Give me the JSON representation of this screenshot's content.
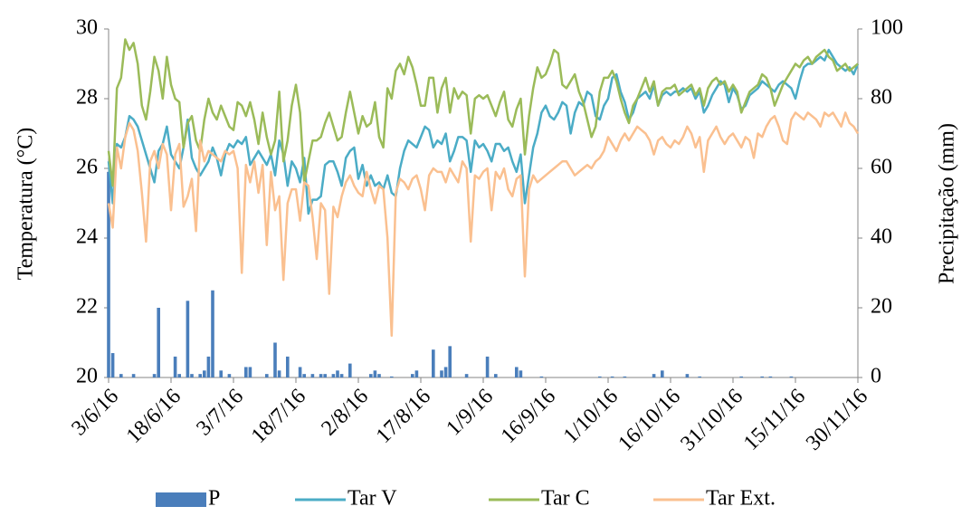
{
  "chart_data": {
    "type": "bar-line",
    "y_label": "Temperatura (°C)",
    "y2_label": "Precipitação (mm)",
    "categories": [
      "3/6/16",
      null,
      null,
      null,
      null,
      null,
      null,
      null,
      null,
      null,
      null,
      null,
      null,
      null,
      null,
      "18/6/16",
      null,
      null,
      null,
      null,
      null,
      null,
      null,
      null,
      null,
      null,
      null,
      null,
      null,
      null,
      "3/7/16",
      null,
      null,
      null,
      null,
      null,
      null,
      null,
      null,
      null,
      null,
      null,
      null,
      null,
      null,
      "18/7/16",
      null,
      null,
      null,
      null,
      null,
      null,
      null,
      null,
      null,
      null,
      null,
      null,
      null,
      null,
      "2/8/16",
      null,
      null,
      null,
      null,
      null,
      null,
      null,
      null,
      null,
      null,
      null,
      null,
      null,
      null,
      "17/8/16",
      null,
      null,
      null,
      null,
      null,
      null,
      null,
      null,
      null,
      null,
      null,
      null,
      null,
      null,
      "1/9/16",
      null,
      null,
      null,
      null,
      null,
      null,
      null,
      null,
      null,
      null,
      null,
      null,
      null,
      null,
      "16/9/16",
      null,
      null,
      null,
      null,
      null,
      null,
      null,
      null,
      null,
      null,
      null,
      null,
      null,
      null,
      "1/10/16",
      null,
      null,
      null,
      null,
      null,
      null,
      null,
      null,
      null,
      null,
      null,
      null,
      null,
      null,
      "16/10/16",
      null,
      null,
      null,
      null,
      null,
      null,
      null,
      null,
      null,
      null,
      null,
      null,
      null,
      null,
      "31/10/16",
      null,
      null,
      null,
      null,
      null,
      null,
      null,
      null,
      null,
      null,
      null,
      null,
      null,
      null,
      "15/11/16",
      null,
      null,
      null,
      null,
      null,
      null,
      null,
      null,
      null,
      null,
      null,
      null,
      null,
      null,
      "30/11/16"
    ],
    "series": [
      {
        "name": "P",
        "type": "bar",
        "axis": "y2",
        "color": "#4a7ebb",
        "values": [
          59,
          7,
          0,
          1,
          0,
          0,
          1,
          0,
          0,
          0,
          0,
          1,
          20,
          0,
          0,
          0,
          6,
          1,
          0,
          22,
          1,
          0,
          1,
          2,
          6,
          25,
          0,
          2,
          0,
          1,
          0,
          0,
          0,
          3,
          3,
          0,
          0,
          0,
          1,
          0,
          10,
          2,
          0,
          6,
          0,
          0,
          3,
          1,
          0,
          1,
          0,
          1,
          1,
          0,
          1,
          2,
          1,
          0,
          4,
          0,
          0,
          0,
          0,
          1,
          2,
          1,
          0,
          0,
          0.3,
          0,
          0,
          0,
          0,
          1,
          2,
          0,
          0,
          0,
          8,
          0,
          2,
          3,
          9,
          0,
          0,
          0,
          1,
          0,
          0,
          0,
          0,
          6,
          0,
          1,
          0,
          0,
          0,
          0,
          3,
          2,
          0,
          0,
          0,
          0,
          0.3,
          0,
          0,
          0,
          0,
          0,
          0,
          0,
          0,
          0,
          0,
          0,
          0,
          0,
          0.3,
          0,
          0,
          0.3,
          0,
          0,
          0.3,
          0,
          0,
          0,
          0,
          0,
          0,
          1,
          0,
          2,
          0,
          0,
          0,
          0,
          0,
          1,
          0,
          0,
          0.3,
          0,
          0,
          0,
          0,
          0,
          0,
          0,
          0,
          0,
          0.3,
          0,
          0,
          0,
          0,
          0.3,
          0,
          0.3,
          0,
          0,
          0,
          0,
          0.3,
          0,
          0,
          0,
          0,
          0,
          0,
          0,
          0,
          0,
          0,
          0,
          0,
          0,
          0,
          0,
          0
        ]
      },
      {
        "name": "Tar V",
        "type": "line",
        "color": "#4bacc6",
        "values": [
          26.2,
          25.0,
          26.7,
          26.6,
          26.9,
          27.5,
          27.4,
          27.2,
          26.8,
          26.4,
          26.0,
          25.6,
          26.5,
          26.7,
          27.2,
          26.4,
          26.2,
          26.0,
          26.6,
          27.4,
          26.3,
          26.0,
          25.8,
          26.0,
          26.2,
          26.6,
          26.3,
          25.8,
          26.4,
          26.7,
          26.6,
          26.8,
          26.7,
          26.9,
          26.1,
          26.3,
          26.5,
          26.3,
          26.1,
          26.4,
          25.8,
          26.8,
          26.4,
          25.5,
          26.2,
          26.0,
          25.6,
          26.3,
          24.7,
          25.1,
          25.1,
          25.2,
          26.1,
          26.2,
          26.2,
          25.9,
          25.5,
          26.3,
          26.5,
          26.6,
          25.7,
          26.1,
          25.5,
          25.8,
          25.5,
          25.6,
          25.4,
          25.8,
          25.3,
          25.2,
          26.0,
          26.5,
          26.8,
          26.7,
          26.6,
          26.9,
          27.2,
          27.1,
          26.6,
          26.8,
          26.7,
          27.0,
          26.2,
          26.5,
          26.9,
          26.9,
          26.8,
          25.9,
          26.8,
          26.6,
          26.7,
          26.5,
          26.2,
          26.7,
          26.7,
          26.5,
          26.6,
          26.2,
          25.9,
          26.4,
          25.0,
          25.8,
          26.6,
          27.0,
          27.6,
          27.8,
          27.5,
          27.4,
          27.6,
          27.9,
          27.8,
          27.0,
          27.6,
          27.9,
          27.8,
          28.2,
          28.1,
          27.5,
          27.4,
          27.8,
          28.0,
          28.6,
          28.7,
          28.2,
          27.9,
          27.4,
          27.6,
          28.0,
          28.1,
          28.2,
          28.0,
          28.4,
          27.8,
          28.1,
          28.2,
          28.1,
          28.2,
          28.2,
          28.3,
          28.2,
          28.3,
          28.0,
          28.2,
          27.6,
          27.8,
          28.1,
          28.3,
          28.5,
          28.4,
          27.9,
          28.3,
          28.1,
          27.7,
          27.8,
          28.1,
          28.2,
          28.3,
          28.5,
          28.4,
          28.3,
          28.2,
          28.4,
          28.5,
          28.4,
          28.3,
          28.0,
          28.5,
          28.9,
          29.0,
          29.0,
          29.1,
          29.2,
          29.1,
          29.4,
          29.2,
          29.0,
          28.9,
          28.8,
          28.9,
          28.7,
          29.0
        ]
      },
      {
        "name": "Tar C",
        "type": "line",
        "color": "#9bbb59",
        "values": [
          26.5,
          25.5,
          28.3,
          28.6,
          29.7,
          29.4,
          29.6,
          29.0,
          27.8,
          27.4,
          28.2,
          29.2,
          28.8,
          28.0,
          29.2,
          28.4,
          28.0,
          27.9,
          26.6,
          27.3,
          27.5,
          26.8,
          26.5,
          27.4,
          28.0,
          27.6,
          27.4,
          27.8,
          27.5,
          27.2,
          27.1,
          27.9,
          27.8,
          27.5,
          27.9,
          27.4,
          26.7,
          27.6,
          26.9,
          26.4,
          26.8,
          28.2,
          26.2,
          26.8,
          27.8,
          28.4,
          27.6,
          25.6,
          26.2,
          26.8,
          26.8,
          26.9,
          27.3,
          27.6,
          27.2,
          26.8,
          26.9,
          27.6,
          28.2,
          27.6,
          27.0,
          27.5,
          27.2,
          27.3,
          27.9,
          26.9,
          26.6,
          28.3,
          28.0,
          28.8,
          29.0,
          28.7,
          29.2,
          28.9,
          28.4,
          27.8,
          27.8,
          28.6,
          28.6,
          27.6,
          28.3,
          28.6,
          27.6,
          28.3,
          28.0,
          28.2,
          28.1,
          27.0,
          28.0,
          28.1,
          28.0,
          28.1,
          27.8,
          27.5,
          27.9,
          28.2,
          27.4,
          27.2,
          27.7,
          28.0,
          26.4,
          27.5,
          28.3,
          28.9,
          28.6,
          28.7,
          29.0,
          29.4,
          29.3,
          28.4,
          28.3,
          28.5,
          28.7,
          28.2,
          27.9,
          27.4,
          26.9,
          27.2,
          28.2,
          28.6,
          28.6,
          28.8,
          28.5,
          28.0,
          27.6,
          27.3,
          27.8,
          28.0,
          28.3,
          28.6,
          28.2,
          28.5,
          27.8,
          28.2,
          28.3,
          28.3,
          28.4,
          28.1,
          28.2,
          28.3,
          28.4,
          28.1,
          28.3,
          27.8,
          28.3,
          28.5,
          28.6,
          28.4,
          28.5,
          28.2,
          28.4,
          28.2,
          27.6,
          27.9,
          28.2,
          28.3,
          28.4,
          28.7,
          28.6,
          28.3,
          27.8,
          28.1,
          28.4,
          28.6,
          28.8,
          29.0,
          28.9,
          29.1,
          29.2,
          29.0,
          29.2,
          29.3,
          29.4,
          29.2,
          29.1,
          28.8,
          28.9,
          29.0,
          28.8,
          28.9,
          29.0
        ]
      },
      {
        "name": "Tar Ext.",
        "type": "line",
        "color": "#fac090",
        "values": [
          25.0,
          24.3,
          26.6,
          26.0,
          26.9,
          27.3,
          27.1,
          26.5,
          25.3,
          23.9,
          26.2,
          26.5,
          26.0,
          26.7,
          26.4,
          24.8,
          26.4,
          26.7,
          24.9,
          25.2,
          25.7,
          24.2,
          26.8,
          26.2,
          26.5,
          26.4,
          26.3,
          26.2,
          26.5,
          26.4,
          26.5,
          26.0,
          23.0,
          26.1,
          25.6,
          26.2,
          25.3,
          26.1,
          23.8,
          25.9,
          24.8,
          25.2,
          22.8,
          25.0,
          25.4,
          25.4,
          24.5,
          25.6,
          25.5,
          24.6,
          23.4,
          25.0,
          24.8,
          22.4,
          24.9,
          24.6,
          25.2,
          25.6,
          25.8,
          25.5,
          25.3,
          25.2,
          25.9,
          25.4,
          25.0,
          25.5,
          25.4,
          24.0,
          21.2,
          25.3,
          25.7,
          25.6,
          25.4,
          25.7,
          25.8,
          25.4,
          24.8,
          25.8,
          26.0,
          25.9,
          25.9,
          25.6,
          26.0,
          25.8,
          25.6,
          26.2,
          26.0,
          23.9,
          25.8,
          25.7,
          25.9,
          26.0,
          24.8,
          25.9,
          25.7,
          26.0,
          25.4,
          25.2,
          25.7,
          25.8,
          22.9,
          25.4,
          25.8,
          25.6,
          25.7,
          25.8,
          25.9,
          26.0,
          26.1,
          26.2,
          26.2,
          26.0,
          25.8,
          25.9,
          26.0,
          26.1,
          26.0,
          26.2,
          26.3,
          26.5,
          26.9,
          26.7,
          26.5,
          26.8,
          27.0,
          26.8,
          27.0,
          27.2,
          27.1,
          27.0,
          26.8,
          26.4,
          26.8,
          26.9,
          26.7,
          26.6,
          26.8,
          26.7,
          26.9,
          27.2,
          27.0,
          26.6,
          26.9,
          25.9,
          26.8,
          27.0,
          27.2,
          26.9,
          26.7,
          26.9,
          27.0,
          26.8,
          26.6,
          26.9,
          26.8,
          26.3,
          27.0,
          26.9,
          27.2,
          27.4,
          27.5,
          27.2,
          26.8,
          26.7,
          27.4,
          27.6,
          27.5,
          27.4,
          27.6,
          27.5,
          27.4,
          27.2,
          27.6,
          27.5,
          27.6,
          27.4,
          27.2,
          27.6,
          27.3,
          27.2,
          27.0
        ]
      }
    ],
    "ylim": [
      20,
      30
    ],
    "yticks": [
      20,
      22,
      24,
      26,
      28,
      30
    ],
    "y2lim": [
      0,
      100
    ],
    "y2ticks": [
      0,
      20,
      40,
      60,
      80,
      100
    ],
    "legend": "bottom"
  }
}
